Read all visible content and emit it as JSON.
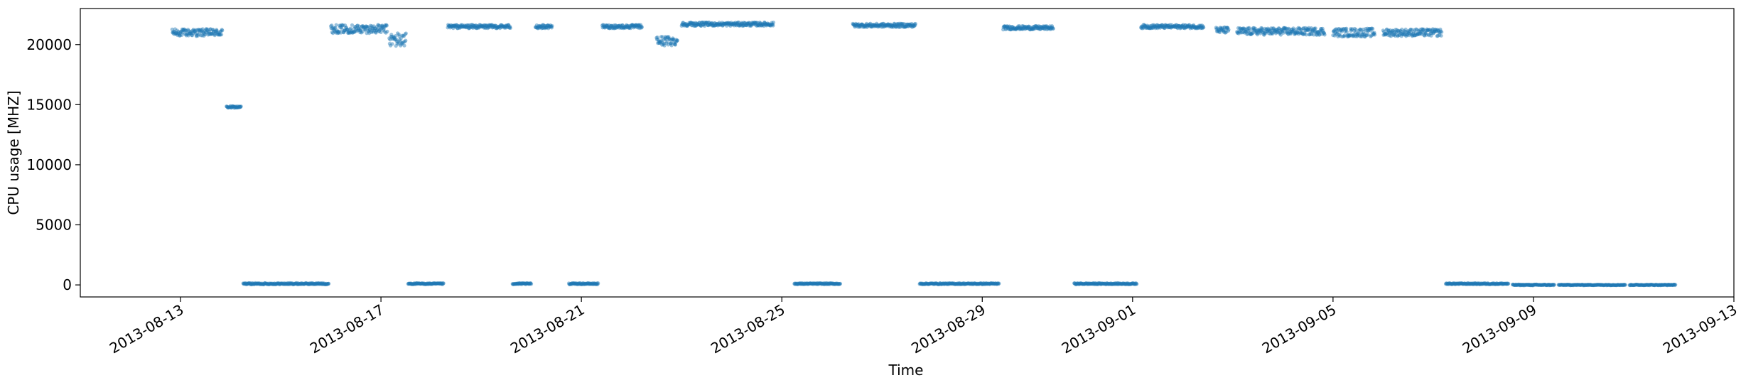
{
  "chart_data": {
    "type": "scatter",
    "xlabel": "Time",
    "ylabel": "CPU usage [MHZ]",
    "ylim": [
      -1000,
      23000
    ],
    "xlim": [
      "2013-08-11T00:00",
      "2013-09-13T00:00"
    ],
    "x_ticks": [
      "2013-08-13",
      "2013-08-17",
      "2013-08-21",
      "2013-08-25",
      "2013-08-29",
      "2013-09-01",
      "2013-09-05",
      "2013-09-09",
      "2013-09-13"
    ],
    "y_ticks": [
      0,
      5000,
      10000,
      15000,
      20000
    ],
    "y_tick_labels": [
      "0",
      "5000",
      "10000",
      "15000",
      "20000"
    ],
    "grid": false,
    "marker_color": "#1f77b4",
    "marker_alpha": 0.45,
    "segments": [
      {
        "start": "2013-08-12T20:00",
        "end": "2013-08-13T20:00",
        "value": 21000,
        "spread": 300
      },
      {
        "start": "2013-08-13T22:00",
        "end": "2013-08-14T05:00",
        "value": 14800,
        "spread": 80
      },
      {
        "start": "2013-08-14T06:00",
        "end": "2013-08-15T23:00",
        "value": 100,
        "spread": 60
      },
      {
        "start": "2013-08-16T00:00",
        "end": "2013-08-17T03:00",
        "value": 21300,
        "spread": 350
      },
      {
        "start": "2013-08-17T04:00",
        "end": "2013-08-17T12:00",
        "value": 20400,
        "spread": 600
      },
      {
        "start": "2013-08-17T13:00",
        "end": "2013-08-18T06:00",
        "value": 100,
        "spread": 50
      },
      {
        "start": "2013-08-18T08:00",
        "end": "2013-08-19T14:00",
        "value": 21500,
        "spread": 150
      },
      {
        "start": "2013-08-19T15:00",
        "end": "2013-08-20T00:00",
        "value": 100,
        "spread": 50
      },
      {
        "start": "2013-08-20T02:00",
        "end": "2013-08-20T10:00",
        "value": 21500,
        "spread": 150
      },
      {
        "start": "2013-08-20T18:00",
        "end": "2013-08-21T08:00",
        "value": 100,
        "spread": 50
      },
      {
        "start": "2013-08-21T10:00",
        "end": "2013-08-22T05:00",
        "value": 21500,
        "spread": 150
      },
      {
        "start": "2013-08-22T12:00",
        "end": "2013-08-22T22:00",
        "value": 20300,
        "spread": 400
      },
      {
        "start": "2013-08-23T00:00",
        "end": "2013-08-24T20:00",
        "value": 21700,
        "spread": 150
      },
      {
        "start": "2013-08-25T06:00",
        "end": "2013-08-26T04:00",
        "value": 100,
        "spread": 50
      },
      {
        "start": "2013-08-26T10:00",
        "end": "2013-08-27T16:00",
        "value": 21600,
        "spread": 150
      },
      {
        "start": "2013-08-27T18:00",
        "end": "2013-08-29T08:00",
        "value": 100,
        "spread": 50
      },
      {
        "start": "2013-08-29T10:00",
        "end": "2013-08-30T10:00",
        "value": 21400,
        "spread": 150
      },
      {
        "start": "2013-08-30T20:00",
        "end": "2013-09-01T02:00",
        "value": 100,
        "spread": 50
      },
      {
        "start": "2013-09-01T04:00",
        "end": "2013-09-02T10:00",
        "value": 21500,
        "spread": 150
      },
      {
        "start": "2013-09-02T16:00",
        "end": "2013-09-02T22:00",
        "value": 21200,
        "spread": 250
      },
      {
        "start": "2013-09-03T02:00",
        "end": "2013-09-04T20:00",
        "value": 21100,
        "spread": 300
      },
      {
        "start": "2013-09-05T00:00",
        "end": "2013-09-05T20:00",
        "value": 21000,
        "spread": 350
      },
      {
        "start": "2013-09-06T00:00",
        "end": "2013-09-07T04:00",
        "value": 21000,
        "spread": 300
      },
      {
        "start": "2013-09-07T06:00",
        "end": "2013-09-08T12:00",
        "value": 100,
        "spread": 50
      },
      {
        "start": "2013-09-08T14:00",
        "end": "2013-09-09T10:00",
        "value": 0,
        "spread": 40
      },
      {
        "start": "2013-09-09T12:00",
        "end": "2013-09-10T20:00",
        "value": 0,
        "spread": 30
      },
      {
        "start": "2013-09-10T22:00",
        "end": "2013-09-11T20:00",
        "value": 0,
        "spread": 30
      }
    ]
  }
}
